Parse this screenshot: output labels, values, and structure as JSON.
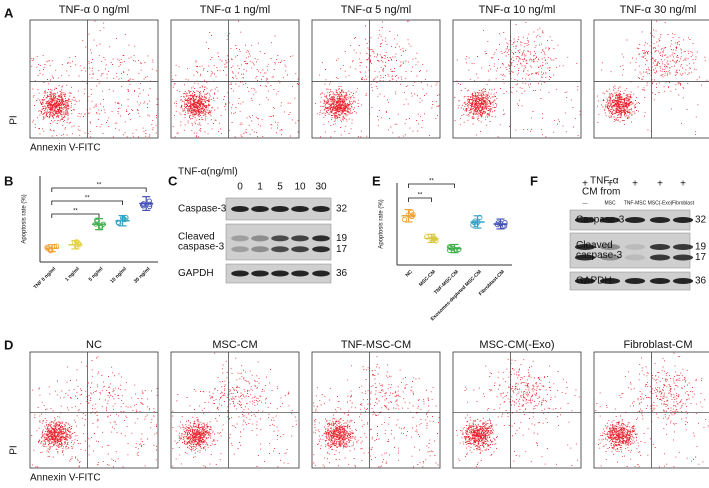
{
  "panel_A": {
    "label": "A",
    "titles": [
      "TNF-α 0 ng/ml",
      "TNF-α 1 ng/ml",
      "TNF-α 5 ng/ml",
      "TNF-α 10 ng/ml",
      "TNF-α 30 ng/ml"
    ],
    "x_label": "Annexin V-FITC",
    "y_label": "PI"
  },
  "panel_B": {
    "label": "B",
    "type": "scatter",
    "y_label": "Apoptosis rate (%)",
    "categories": [
      "TNF 0 ng/ml",
      "1 ng/ml",
      "5 ng/ml",
      "10 ng/ml",
      "30 ng/ml"
    ],
    "colors": [
      "#f2a33a",
      "#e3d146",
      "#3fae49",
      "#35a4c4",
      "#4452b8"
    ],
    "values": [
      4,
      5,
      11,
      12,
      17
    ],
    "errors": [
      1,
      1.2,
      1.6,
      1.5,
      2
    ],
    "ylim": [
      0,
      25
    ],
    "significance": [
      "**",
      "**",
      "**"
    ]
  },
  "panel_C": {
    "label": "C",
    "treatment": "TNF-α(ng/ml)",
    "lanes": [
      "0",
      "1",
      "5",
      "10",
      "30"
    ],
    "rows": [
      [
        "Caspase-3"
      ],
      [
        "Cleaved",
        "caspase-3"
      ],
      [
        "GAPDH"
      ]
    ],
    "mw": [
      32,
      19,
      17,
      36
    ]
  },
  "panel_E": {
    "label": "E",
    "type": "scatter",
    "y_label": "Apoptosis rate (%)",
    "categories": [
      "NC",
      "MSC-CM",
      "TNF-MSC-CM",
      "Exosomes-depleted MSC-CM",
      "Fibroblast-CM"
    ],
    "colors": [
      "#f2a33a",
      "#d8c83e",
      "#3fae49",
      "#35a4c4",
      "#4452b8"
    ],
    "values": [
      12,
      6.5,
      4,
      10.5,
      10
    ],
    "errors": [
      1.5,
      1,
      1,
      1.5,
      1.2
    ],
    "ylim": [
      0,
      20
    ],
    "significance": [
      "**",
      "**"
    ]
  },
  "panel_F": {
    "label": "F",
    "treatment": "TNF-α",
    "source": "CM from",
    "plus": [
      "+",
      "+",
      "+",
      "+",
      "+"
    ],
    "lanes": [
      "—",
      "MSC",
      "TNF-MSC",
      "MSC(-Exo)",
      "Fibroblast"
    ],
    "rows": [
      [
        "Caspase-3"
      ],
      [
        "Cleaved",
        "caspase-3"
      ],
      [
        "GAPDH"
      ]
    ],
    "mw": [
      32,
      19,
      17,
      36
    ]
  },
  "panel_D": {
    "label": "D",
    "titles": [
      "NC",
      "MSC-CM",
      "TNF-MSC-CM",
      "MSC-CM(-Exo)",
      "Fibroblast-CM"
    ],
    "x_label": "Annexin V-FITC",
    "y_label": "PI"
  }
}
